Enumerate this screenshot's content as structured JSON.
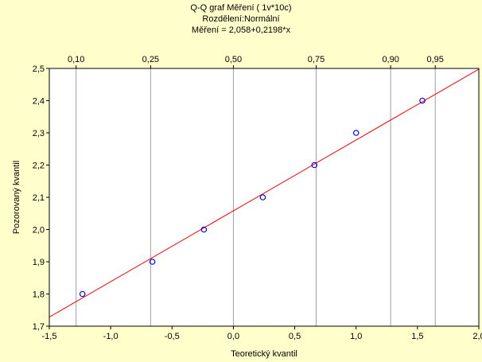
{
  "chart_data": {
    "type": "scatter",
    "title_lines": [
      "Q-Q graf Měření ( 1v*10c)",
      "Rozdělení:Normální",
      "Měření = 2,058+0,2198*x"
    ],
    "xlabel": "Teoretický kvantil",
    "ylabel": "Pozorovaný kvantil",
    "xlim": [
      -1.5,
      2.0
    ],
    "ylim": [
      1.7,
      2.5
    ],
    "x_ticks": [
      -1.5,
      -1.0,
      -0.5,
      0.0,
      0.5,
      1.0,
      1.5,
      2.0
    ],
    "x_tick_labels": [
      "-1,5",
      "-1,0",
      "-0,5",
      "0,0",
      "0,5",
      "1,0",
      "1,5",
      "2,0"
    ],
    "y_ticks": [
      1.7,
      1.8,
      1.9,
      2.0,
      2.1,
      2.2,
      2.3,
      2.4,
      2.5
    ],
    "y_tick_labels": [
      "1,7",
      "1,8",
      "1,9",
      "2,0",
      "2,1",
      "2,2",
      "2,3",
      "2,4",
      "2,5"
    ],
    "top_axis_probabilities": [
      0.1,
      0.25,
      0.5,
      0.75,
      0.9,
      0.95
    ],
    "top_axis_labels": [
      "0,10",
      "0,25",
      "0,50",
      "0,75",
      "0,90",
      "0,95"
    ],
    "probability_grid_quantiles": [
      -1.2816,
      -0.6745,
      0.0,
      0.6745,
      1.2816,
      1.6449
    ],
    "points": [
      {
        "x": -1.23,
        "y": 1.8
      },
      {
        "x": -0.66,
        "y": 1.9
      },
      {
        "x": -0.24,
        "y": 2.0
      },
      {
        "x": 0.24,
        "y": 2.1
      },
      {
        "x": 0.66,
        "y": 2.2
      },
      {
        "x": 1.0,
        "y": 2.3
      },
      {
        "x": 1.54,
        "y": 2.4
      }
    ],
    "fit_line": {
      "intercept": 2.058,
      "slope": 0.2198
    },
    "colors": {
      "background": "#ffffcc",
      "plot_area": "#ffffff",
      "points": "#0000ff",
      "fit_line": "#ff0000",
      "grid": "#a0a0a0"
    }
  }
}
